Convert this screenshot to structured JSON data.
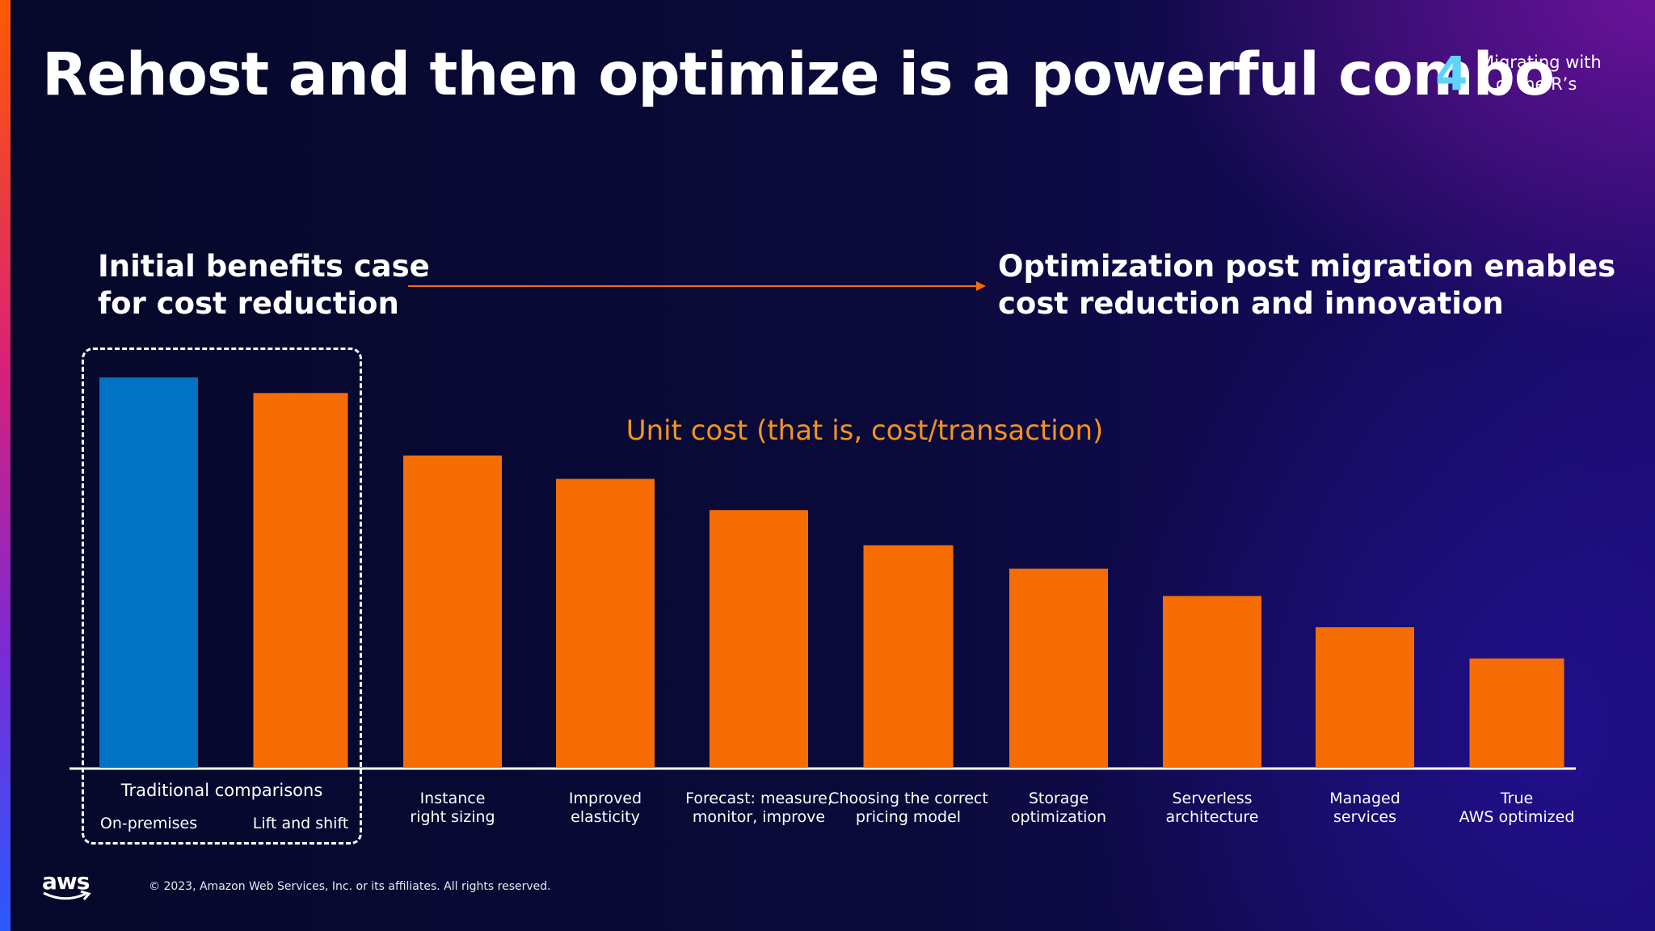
{
  "slide": {
    "title": "Rehost and then optimize is a powerful combo",
    "section_number": "4",
    "section_label": "Migrating with\n5 of the R’s",
    "heading_left": "Initial benefits case\nfor cost reduction",
    "heading_right": "Optimization post migration enables\ncost reduction and innovation",
    "unit_label": "Unit cost (that is, cost/transaction)",
    "group_label": "Traditional comparisons",
    "footer_logo": "aws",
    "copyright": "© 2023, Amazon Web Services, Inc. or its affiliates. All rights reserved."
  },
  "colors": {
    "on_premises_bar": "#0272c5",
    "bar": "#f66d06",
    "arrow": "#f46b0a",
    "unit_label": "#f5931e",
    "section_number": "#5fd4f8"
  },
  "chart_data": {
    "type": "bar",
    "categories": [
      "On-premises",
      "Lift and shift",
      "Instance\nright sizing",
      "Improved\nelasticity",
      "Forecast: measure,\nmonitor, improve",
      "Choosing the correct\npricing model",
      "Storage\noptimization",
      "Serverless\narchitecture",
      "Managed\nservices",
      "True\nAWS optimized"
    ],
    "values": [
      100,
      96,
      80,
      74,
      66,
      57,
      51,
      44,
      36,
      28
    ],
    "title": "",
    "xlabel": "",
    "ylabel": "Unit cost (that is, cost/transaction)",
    "ylim": [
      0,
      100
    ],
    "grid": false,
    "legend": "none"
  }
}
